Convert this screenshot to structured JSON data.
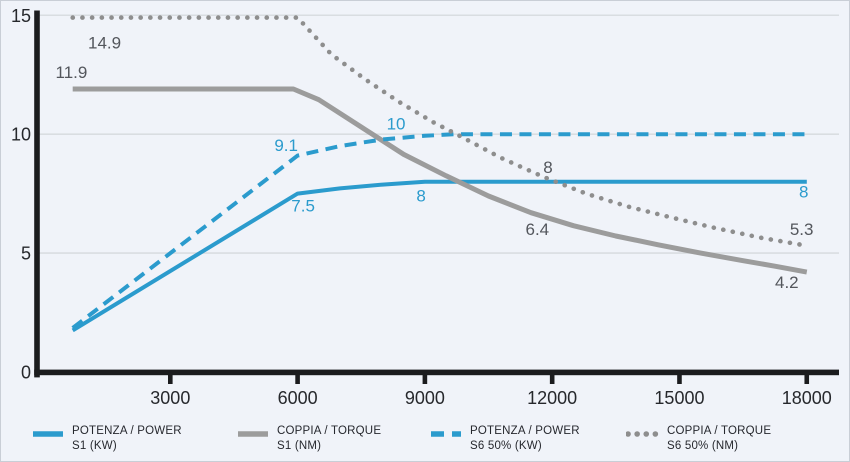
{
  "chart_data": {
    "type": "line",
    "title": "",
    "xlabel": "",
    "ylabel": "",
    "xlim": [
      -130,
      18760
    ],
    "ylim": [
      0,
      15.2
    ],
    "xticks": [
      3000,
      6000,
      9000,
      12000,
      15000,
      18000
    ],
    "yticks": [
      0,
      5,
      10,
      15
    ],
    "grid_y": [
      5,
      10,
      15
    ],
    "legend_position": "bottom",
    "colors": {
      "blue": "#2B9BCD",
      "dark": "#53565C",
      "axis": "#1B1C1E",
      "grid": "#D9DDE1",
      "tick_text": "#26282C",
      "background": "#F0F3F9"
    },
    "series": [
      {
        "id": "power-s1",
        "name": "POTENZA / POWER S1 (KW)",
        "legend_line1": "POTENZA / POWER",
        "legend_line2": "S1 (KW)",
        "color": "#2B9BCD",
        "style": "solid",
        "width": 4,
        "points": [
          [
            700,
            1.75
          ],
          [
            6000,
            7.5
          ],
          [
            7000,
            7.72
          ],
          [
            8000,
            7.88
          ],
          [
            9000,
            8.0
          ],
          [
            18000,
            8.0
          ]
        ]
      },
      {
        "id": "torque-s1",
        "name": "COPPIA / TORQUE S1 (NM)",
        "legend_line1": "COPPIA / TORQUE",
        "legend_line2": "S1 (NM)",
        "color": "#9C9C9C",
        "style": "solid",
        "width": 5,
        "points": [
          [
            700,
            11.9
          ],
          [
            5900,
            11.9
          ],
          [
            6500,
            11.45
          ],
          [
            7500,
            10.3
          ],
          [
            8500,
            9.15
          ],
          [
            9500,
            8.25
          ],
          [
            10500,
            7.4
          ],
          [
            11500,
            6.7
          ],
          [
            12500,
            6.15
          ],
          [
            13500,
            5.72
          ],
          [
            14500,
            5.35
          ],
          [
            15500,
            5.0
          ],
          [
            16500,
            4.68
          ],
          [
            17250,
            4.45
          ],
          [
            18000,
            4.2
          ]
        ]
      },
      {
        "id": "power-s6",
        "name": "POTENZA / POWER S6 50% (KW)",
        "legend_line1": "POTENZA / POWER",
        "legend_line2": "S6 50% (KW)",
        "color": "#2B9BCD",
        "style": "dashed",
        "width": 4,
        "points": [
          [
            700,
            1.85
          ],
          [
            6000,
            9.1
          ],
          [
            7000,
            9.5
          ],
          [
            8000,
            9.78
          ],
          [
            9000,
            9.93
          ],
          [
            9700,
            10.0
          ],
          [
            18000,
            10.0
          ]
        ]
      },
      {
        "id": "torque-s6",
        "name": "COPPIA / TORQUE S6 50% (NM)",
        "legend_line1": "COPPIA / TORQUE",
        "legend_line2": "S6 50% (NM)",
        "color": "#8E8E8E",
        "style": "dotted",
        "width": 4.6,
        "points": [
          [
            700,
            14.9
          ],
          [
            6000,
            14.9
          ],
          [
            6800,
            13.35
          ],
          [
            7600,
            12.3
          ],
          [
            8400,
            11.35
          ],
          [
            9200,
            10.5
          ],
          [
            9800,
            9.95
          ],
          [
            10800,
            9.0
          ],
          [
            11800,
            8.2
          ],
          [
            12800,
            7.5
          ],
          [
            13800,
            6.95
          ],
          [
            14800,
            6.5
          ],
          [
            15800,
            6.07
          ],
          [
            16900,
            5.65
          ],
          [
            18000,
            5.31
          ]
        ]
      }
    ],
    "point_labels": [
      {
        "x": 1450,
        "y": 13.85,
        "text": "14.9",
        "color": "dark"
      },
      {
        "x": 670,
        "y": 12.62,
        "text": "11.9",
        "color": "dark"
      },
      {
        "x": 5730,
        "y": 9.55,
        "text": "9.1",
        "color": "blue"
      },
      {
        "x": 8320,
        "y": 10.45,
        "text": "10",
        "color": "blue"
      },
      {
        "x": 6130,
        "y": 7.0,
        "text": "7.5",
        "color": "blue"
      },
      {
        "x": 8910,
        "y": 7.42,
        "text": "8",
        "color": "blue"
      },
      {
        "x": 11650,
        "y": 6.02,
        "text": "6.4",
        "color": "dark"
      },
      {
        "x": 11900,
        "y": 8.62,
        "text": "8",
        "color": "dark"
      },
      {
        "x": 17930,
        "y": 7.58,
        "text": "8",
        "color": "blue"
      },
      {
        "x": 17880,
        "y": 6.02,
        "text": "5.3",
        "color": "dark"
      },
      {
        "x": 17530,
        "y": 3.78,
        "text": "4.2",
        "color": "dark"
      }
    ]
  }
}
